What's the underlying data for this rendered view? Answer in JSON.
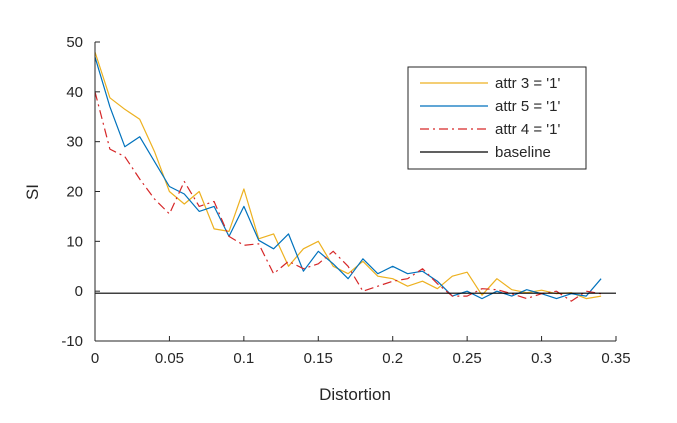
{
  "chart_data": {
    "type": "line",
    "xlabel": "Distortion",
    "ylabel": "SI",
    "xlim": [
      0,
      0.35
    ],
    "ylim": [
      -10,
      50
    ],
    "xticks": [
      0,
      0.05,
      0.1,
      0.15,
      0.2,
      0.25,
      0.3,
      0.35
    ],
    "xtick_labels": [
      "0",
      "0.05",
      "0.1",
      "0.15",
      "0.2",
      "0.25",
      "0.3",
      "0.35"
    ],
    "yticks": [
      -10,
      0,
      10,
      20,
      30,
      40,
      50
    ],
    "ytick_labels": [
      "-10",
      "0",
      "10",
      "20",
      "30",
      "40",
      "50"
    ],
    "grid": false,
    "legend_position": "top-right",
    "series": [
      {
        "name": "attr 3 = '1'",
        "color": "#EDB120",
        "dash": "solid",
        "x": [
          0,
          0.01,
          0.02,
          0.03,
          0.04,
          0.05,
          0.06,
          0.07,
          0.08,
          0.09,
          0.1,
          0.11,
          0.12,
          0.13,
          0.14,
          0.15,
          0.16,
          0.17,
          0.18,
          0.19,
          0.2,
          0.21,
          0.22,
          0.23,
          0.24,
          0.25,
          0.26,
          0.27,
          0.28,
          0.29,
          0.3,
          0.31,
          0.32,
          0.33,
          0.34
        ],
        "y": [
          48,
          38.8,
          36.5,
          34.5,
          28,
          20,
          17.5,
          20,
          12.5,
          12,
          20.5,
          10.5,
          11.5,
          5,
          8.5,
          10,
          5,
          3.5,
          6,
          3,
          2.5,
          1,
          2,
          0.5,
          3,
          3.8,
          -0.8,
          2.5,
          0.3,
          -0.3,
          0.2,
          -0.5,
          -0.3,
          -1.5,
          -1
        ]
      },
      {
        "name": "attr 5 = '1'",
        "color": "#0072BD",
        "dash": "solid",
        "x": [
          0,
          0.01,
          0.02,
          0.03,
          0.04,
          0.05,
          0.06,
          0.07,
          0.08,
          0.09,
          0.1,
          0.11,
          0.12,
          0.13,
          0.14,
          0.15,
          0.16,
          0.17,
          0.18,
          0.19,
          0.2,
          0.21,
          0.22,
          0.23,
          0.24,
          0.25,
          0.26,
          0.27,
          0.28,
          0.29,
          0.3,
          0.31,
          0.32,
          0.33,
          0.34
        ],
        "y": [
          47,
          37,
          29,
          31,
          26,
          21,
          19.5,
          16,
          17,
          11,
          17,
          10.2,
          8.5,
          11.5,
          4,
          8,
          5.5,
          2.5,
          6.5,
          3.5,
          5,
          3.5,
          4,
          2,
          -1,
          0,
          -1.5,
          0,
          -1,
          0.3,
          -0.5,
          -1.5,
          -0.5,
          -1,
          2.5
        ]
      },
      {
        "name": "attr 4 = '1'",
        "color": "#D62728",
        "dash": "dashdot",
        "x": [
          0,
          0.01,
          0.02,
          0.03,
          0.04,
          0.05,
          0.06,
          0.07,
          0.08,
          0.09,
          0.1,
          0.11,
          0.12,
          0.13,
          0.14,
          0.15,
          0.16,
          0.17,
          0.18,
          0.19,
          0.2,
          0.21,
          0.22,
          0.23,
          0.24,
          0.25,
          0.26,
          0.27,
          0.28,
          0.29,
          0.3,
          0.31,
          0.32,
          0.33,
          0.34
        ],
        "y": [
          40,
          28.5,
          27,
          22.5,
          18.5,
          15.5,
          22,
          17,
          18,
          11,
          9.2,
          9.5,
          3.5,
          6,
          4.5,
          5.5,
          8,
          5,
          0,
          1,
          2,
          2.5,
          4.5,
          1.5,
          -1,
          -1,
          0.5,
          0.3,
          -0.5,
          -1.5,
          -0.5,
          0,
          -2,
          0,
          -0.5
        ]
      },
      {
        "name": "baseline",
        "color": "#000000",
        "dash": "solid",
        "x": [
          0,
          0.35
        ],
        "y": [
          -0.4,
          -0.4
        ]
      }
    ]
  }
}
